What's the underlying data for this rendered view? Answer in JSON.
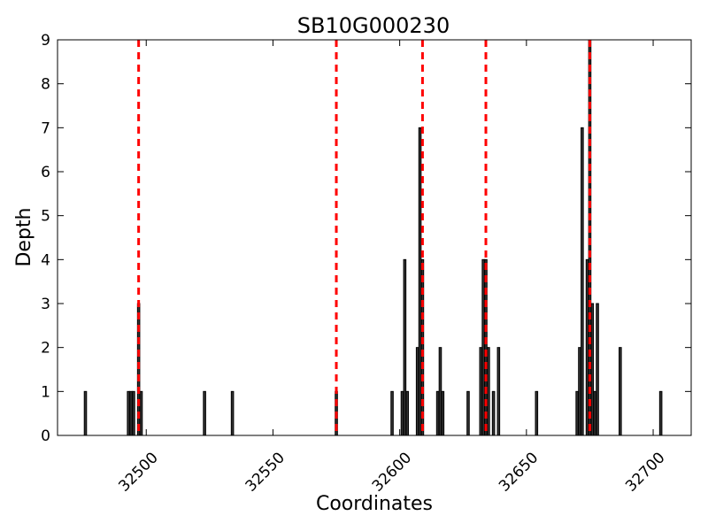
{
  "chart_data": {
    "type": "bar",
    "title": "SB10G000230",
    "xlabel": "Coordinates",
    "ylabel": "Depth",
    "xlim": [
      32465,
      32715
    ],
    "ylim": [
      0,
      9
    ],
    "x_ticks": [
      32500,
      32550,
      32600,
      32650,
      32700
    ],
    "y_ticks": [
      0,
      1,
      2,
      3,
      4,
      5,
      6,
      7,
      8,
      9
    ],
    "grid": false,
    "bar_color": "#333333",
    "bar_edge_color": "#000000",
    "marker_color": "#ff0000",
    "bars": [
      {
        "x": 32476,
        "y": 1
      },
      {
        "x": 32493,
        "y": 1
      },
      {
        "x": 32494,
        "y": 1
      },
      {
        "x": 32495,
        "y": 1
      },
      {
        "x": 32497,
        "y": 3
      },
      {
        "x": 32498,
        "y": 1
      },
      {
        "x": 32523,
        "y": 1
      },
      {
        "x": 32534,
        "y": 1
      },
      {
        "x": 32575,
        "y": 1
      },
      {
        "x": 32597,
        "y": 1
      },
      {
        "x": 32601,
        "y": 1
      },
      {
        "x": 32602,
        "y": 4
      },
      {
        "x": 32603,
        "y": 1
      },
      {
        "x": 32607,
        "y": 2
      },
      {
        "x": 32608,
        "y": 7
      },
      {
        "x": 32609,
        "y": 4
      },
      {
        "x": 32615,
        "y": 1
      },
      {
        "x": 32616,
        "y": 2
      },
      {
        "x": 32617,
        "y": 1
      },
      {
        "x": 32627,
        "y": 1
      },
      {
        "x": 32632,
        "y": 2
      },
      {
        "x": 32633,
        "y": 4
      },
      {
        "x": 32634,
        "y": 4
      },
      {
        "x": 32635,
        "y": 2
      },
      {
        "x": 32637,
        "y": 1
      },
      {
        "x": 32639,
        "y": 2
      },
      {
        "x": 32654,
        "y": 1
      },
      {
        "x": 32670,
        "y": 1
      },
      {
        "x": 32671,
        "y": 2
      },
      {
        "x": 32672,
        "y": 7
      },
      {
        "x": 32674,
        "y": 4
      },
      {
        "x": 32675,
        "y": 9
      },
      {
        "x": 32676,
        "y": 3
      },
      {
        "x": 32677,
        "y": 1
      },
      {
        "x": 32678,
        "y": 3
      },
      {
        "x": 32687,
        "y": 2
      },
      {
        "x": 32703,
        "y": 1
      }
    ],
    "vertical_markers": [
      32497,
      32575,
      32609,
      32634,
      32675
    ]
  }
}
